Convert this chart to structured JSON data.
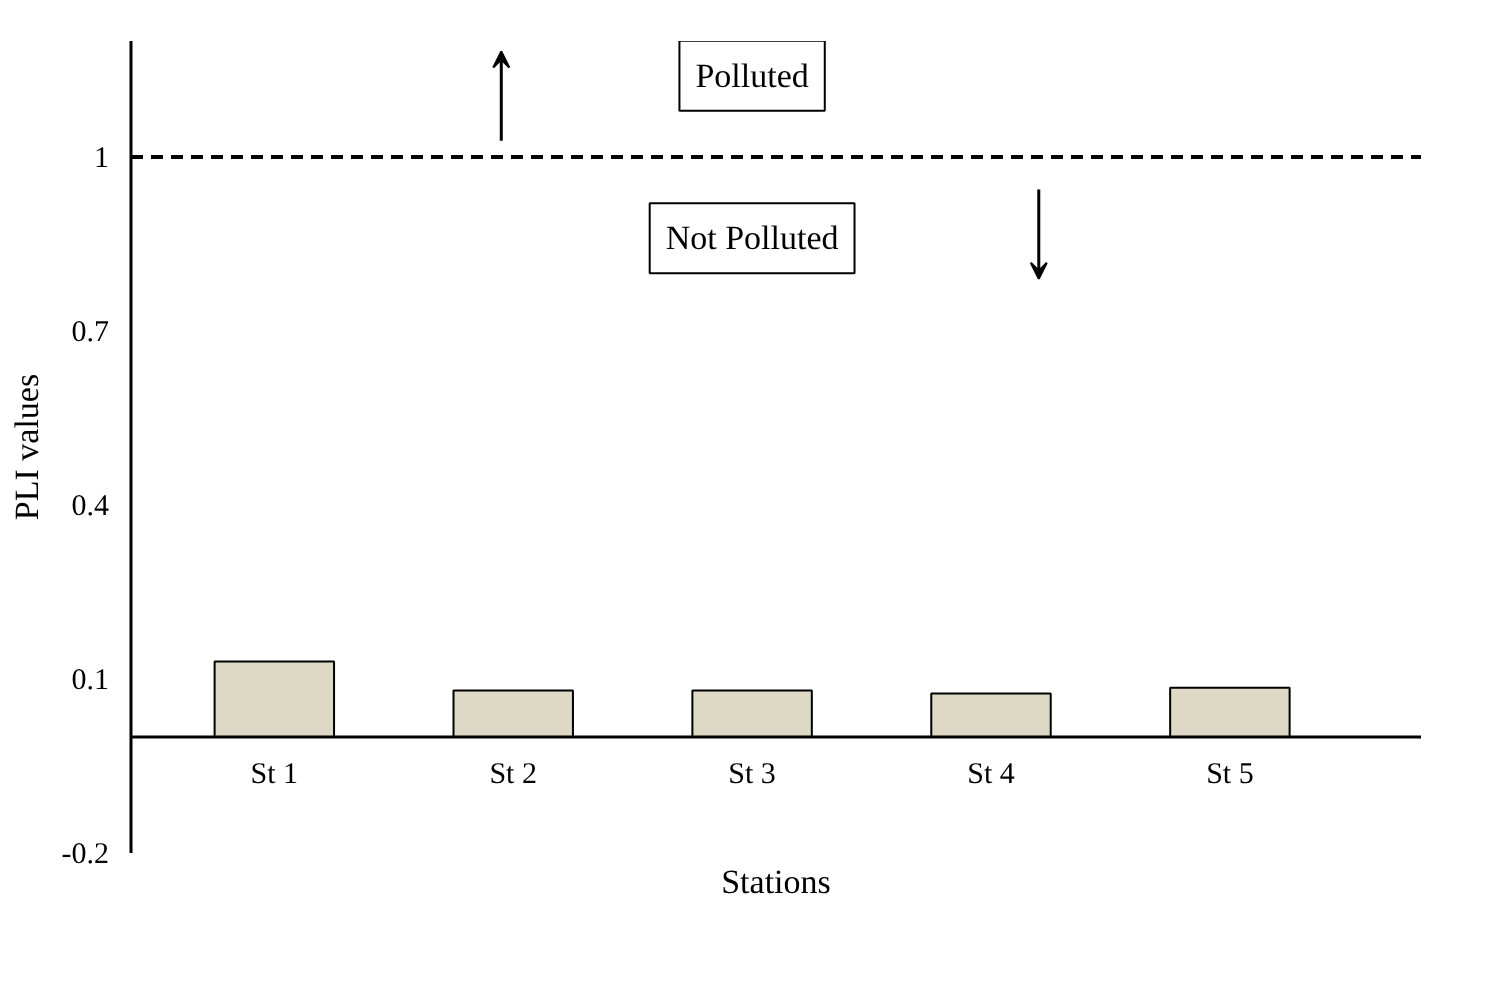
{
  "chart_data": {
    "type": "bar",
    "xlabel": "Stations",
    "ylabel": "PLI values",
    "categories": [
      "St 1",
      "St 2",
      "St 3",
      "St 4",
      "St 5"
    ],
    "values": [
      0.13,
      0.08,
      0.08,
      0.075,
      0.085
    ],
    "color": "#ddd9c4",
    "ylim": [
      -0.2,
      1.2
    ],
    "yticks": [
      -0.2,
      0.1,
      0.4,
      0.7,
      1
    ],
    "grid": false,
    "ref_lines": [
      {
        "axis": "y",
        "value": 1,
        "color": "#000000",
        "line_style": "dashed"
      }
    ],
    "annotations": [
      "Polluted",
      "Not Polluted"
    ]
  }
}
